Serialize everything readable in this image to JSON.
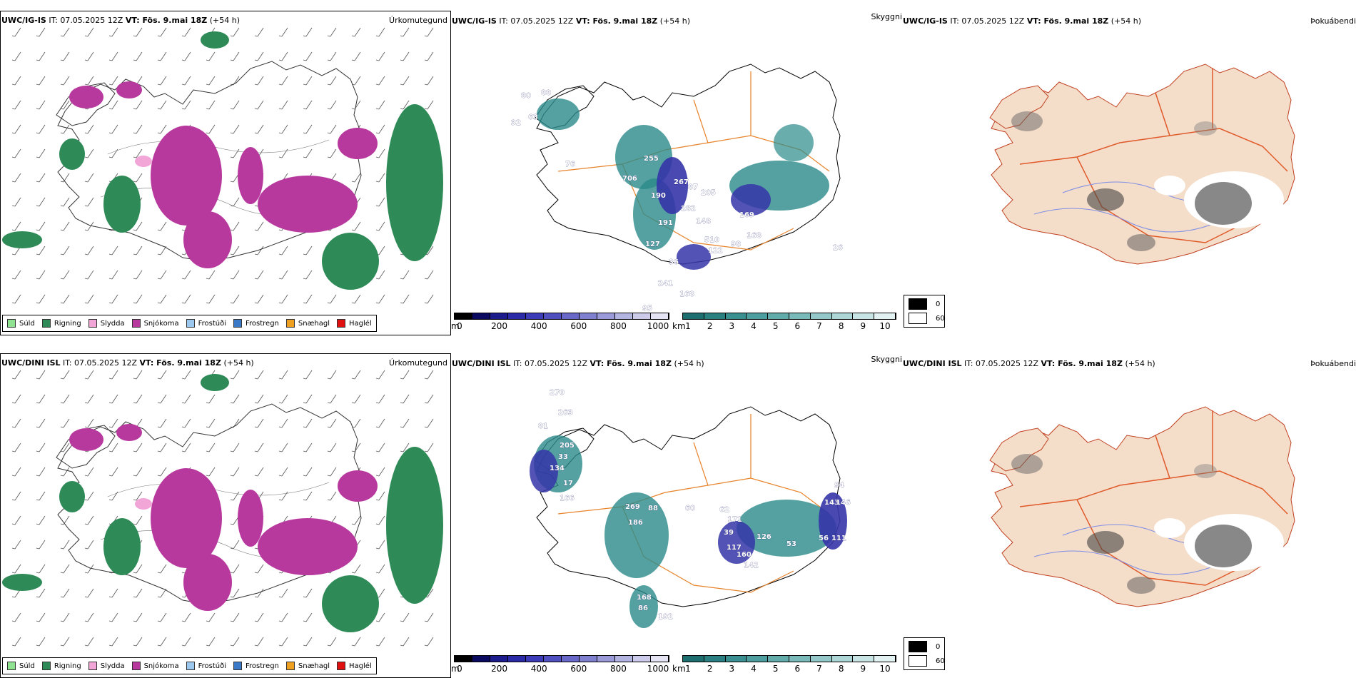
{
  "rows": [
    {
      "model_bold": "UWC/IG-IS",
      "run_time": "IT: 07.05.2025 12Z",
      "vt_bold": "VT: Fös. 9.mai 18Z",
      "lead": "(+54 h)"
    },
    {
      "model_bold": "UWC/DINI ISL",
      "run_time": "IT: 07.05.2025 12Z",
      "vt_bold": "VT: Fös. 9.mai 18Z",
      "lead": "(+54 h)"
    }
  ],
  "panel_types": {
    "precip": "Úrkomutegund",
    "cloud": "Skyggni",
    "fog": "Þokuábendi"
  },
  "precip_legend": [
    {
      "label": "Súld",
      "color": "#8fe28f"
    },
    {
      "label": "Rigning",
      "color": "#2e8b57"
    },
    {
      "label": "Slydda",
      "color": "#f2a6d8"
    },
    {
      "label": "Snjókoma",
      "color": "#b8399e"
    },
    {
      "label": "Frostúði",
      "color": "#9cc8f0"
    },
    {
      "label": "Frostregn",
      "color": "#3a78c8"
    },
    {
      "label": "Snæhagl",
      "color": "#f0a020"
    },
    {
      "label": "Haglél",
      "color": "#e01010"
    }
  ],
  "cloud_base_scale": {
    "unit": "m",
    "ticks": [
      "0",
      "200",
      "400",
      "600",
      "800",
      "1000"
    ],
    "colors": [
      "#000000",
      "#0a0a60",
      "#1c1c8c",
      "#2b2ba8",
      "#3c3cb8",
      "#5050c0",
      "#6868c8",
      "#8080d0",
      "#9a9ad8",
      "#b4b4e0",
      "#ccccea",
      "#e4e4f4"
    ]
  },
  "visibility_scale": {
    "unit": "km",
    "ticks": [
      "1",
      "2",
      "3",
      "4",
      "5",
      "6",
      "7",
      "8",
      "9",
      "10"
    ],
    "colors": [
      "#1d6e6e",
      "#2a8080",
      "#3a9090",
      "#4d9e9e",
      "#62abab",
      "#7ab9b9",
      "#94c8c8",
      "#aed6d6",
      "#c8e4e4",
      "#e2f2f2"
    ]
  },
  "fog_legend": [
    {
      "label": "0",
      "color": "#000000"
    },
    {
      "label": "60",
      "color": "#ffffff"
    }
  ],
  "cloud_labels_top": [
    "80",
    "88",
    "63",
    "32",
    "76",
    "255",
    "706",
    "267",
    "87",
    "205",
    "190",
    "282",
    "191",
    "148",
    "169",
    "510",
    "127",
    "36",
    "122",
    "241",
    "168",
    "95",
    "98",
    "168",
    "26"
  ],
  "cloud_labels_bottom": [
    "270",
    "81",
    "263",
    "205",
    "33",
    "134",
    "17",
    "166",
    "269",
    "88",
    "186",
    "60",
    "62",
    "171",
    "39",
    "117",
    "160",
    "126",
    "143",
    "146",
    "94",
    "56",
    "111",
    "53",
    "86",
    "168",
    "192",
    "142"
  ]
}
